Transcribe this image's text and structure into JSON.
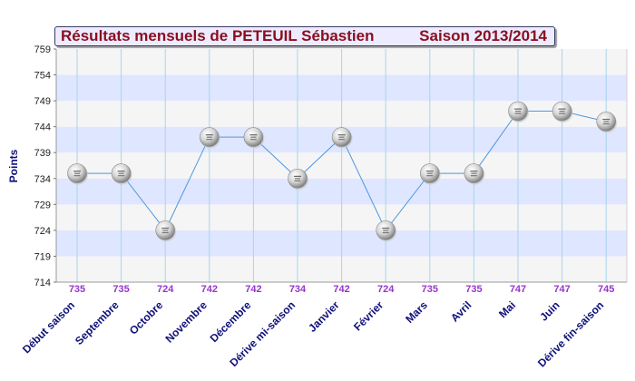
{
  "header": {
    "title": "Résultats mensuels de  PETEUIL Sébastien",
    "season": "Saison 2013/2014"
  },
  "colors": {
    "band_blue": "#dfe6ff",
    "band_grey": "#f5f5f5",
    "line": "#4f98e0",
    "value_label": "#9933cc",
    "category_label": "#10107a",
    "title_text": "#8a0e1e"
  },
  "chart_data": {
    "type": "line",
    "title": "Résultats mensuels de  PETEUIL Sébastien",
    "subtitle": "Saison 2013/2014",
    "xlabel": "",
    "ylabel": "Points",
    "ylim": [
      714,
      759
    ],
    "yticks": [
      714,
      719,
      724,
      729,
      734,
      739,
      744,
      749,
      754,
      759
    ],
    "grid": true,
    "legend": "none",
    "marker": "ball-icon",
    "categories": [
      "Début saison",
      "Septembre",
      "Octobre",
      "Novembre",
      "Décembre",
      "Dérive mi-saison",
      "Janvier",
      "Février",
      "Mars",
      "Avril",
      "Mai",
      "Juin",
      "Dérive fin-saison"
    ],
    "values": [
      735,
      735,
      724,
      742,
      742,
      734,
      742,
      724,
      735,
      735,
      747,
      747,
      745
    ],
    "data_labels": [
      "735",
      "735",
      "724",
      "742",
      "742",
      "734",
      "742",
      "724",
      "735",
      "735",
      "747",
      "747",
      "745"
    ]
  }
}
